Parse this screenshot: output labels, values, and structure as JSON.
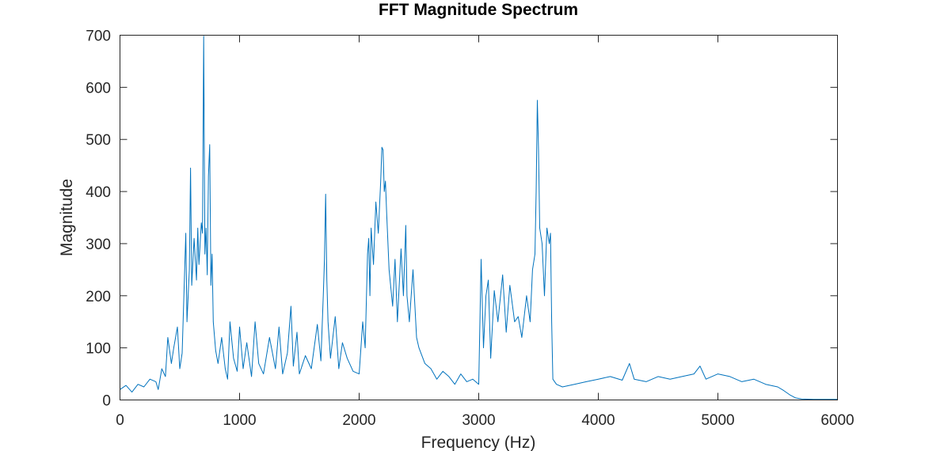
{
  "chart_data": {
    "type": "line",
    "title": "FFT Magnitude Spectrum",
    "xlabel": "Frequency (Hz)",
    "ylabel": "Magnitude",
    "xlim": [
      0,
      6000
    ],
    "ylim": [
      0,
      700
    ],
    "xticks": [
      0,
      1000,
      2000,
      3000,
      4000,
      5000,
      6000
    ],
    "yticks": [
      0,
      100,
      200,
      300,
      400,
      500,
      600,
      700
    ],
    "grid": false,
    "series_color": "#0072BD",
    "series": [
      {
        "x": [
          0,
          50,
          100,
          150,
          200,
          250,
          300,
          320,
          350,
          380,
          400,
          430,
          450,
          480,
          500,
          520,
          550,
          560,
          580,
          590,
          600,
          620,
          640,
          650,
          660,
          670,
          680,
          690,
          700,
          710,
          720,
          730,
          740,
          750,
          760,
          770,
          780,
          800,
          820,
          850,
          880,
          900,
          920,
          950,
          980,
          1000,
          1030,
          1060,
          1100,
          1130,
          1160,
          1200,
          1250,
          1300,
          1330,
          1360,
          1400,
          1430,
          1450,
          1480,
          1500,
          1550,
          1600,
          1650,
          1680,
          1700,
          1710,
          1720,
          1730,
          1740,
          1760,
          1800,
          1830,
          1860,
          1900,
          1950,
          2000,
          2030,
          2050,
          2070,
          2080,
          2090,
          2100,
          2120,
          2140,
          2160,
          2180,
          2190,
          2200,
          2210,
          2220,
          2230,
          2250,
          2280,
          2300,
          2320,
          2350,
          2370,
          2390,
          2400,
          2420,
          2450,
          2480,
          2500,
          2550,
          2600,
          2650,
          2700,
          2750,
          2800,
          2850,
          2900,
          2950,
          3000,
          3020,
          3040,
          3060,
          3080,
          3100,
          3130,
          3160,
          3200,
          3230,
          3260,
          3300,
          3330,
          3360,
          3400,
          3430,
          3450,
          3470,
          3480,
          3490,
          3500,
          3510,
          3530,
          3550,
          3570,
          3590,
          3600,
          3610,
          3620,
          3650,
          3700,
          3800,
          3900,
          4000,
          4100,
          4200,
          4260,
          4300,
          4400,
          4500,
          4600,
          4700,
          4800,
          4850,
          4900,
          5000,
          5100,
          5200,
          5300,
          5400,
          5500,
          5550,
          5600,
          5650,
          5700,
          5800,
          6000
        ],
        "y": [
          20,
          28,
          15,
          30,
          25,
          40,
          35,
          20,
          60,
          45,
          120,
          70,
          100,
          140,
          60,
          90,
          320,
          150,
          250,
          445,
          220,
          310,
          230,
          330,
          260,
          300,
          340,
          320,
          698,
          280,
          330,
          240,
          430,
          490,
          220,
          280,
          150,
          95,
          70,
          120,
          60,
          40,
          150,
          80,
          55,
          140,
          60,
          110,
          45,
          150,
          70,
          50,
          120,
          60,
          140,
          50,
          90,
          180,
          65,
          130,
          50,
          85,
          60,
          145,
          75,
          200,
          270,
          395,
          230,
          150,
          80,
          160,
          60,
          110,
          80,
          55,
          50,
          150,
          100,
          280,
          310,
          200,
          330,
          260,
          380,
          320,
          420,
          485,
          480,
          400,
          420,
          360,
          250,
          180,
          270,
          150,
          290,
          200,
          335,
          200,
          150,
          250,
          120,
          100,
          70,
          60,
          40,
          55,
          45,
          30,
          50,
          35,
          40,
          30,
          270,
          100,
          200,
          230,
          80,
          210,
          150,
          240,
          130,
          220,
          150,
          160,
          120,
          200,
          150,
          250,
          280,
          400,
          575,
          480,
          330,
          300,
          200,
          330,
          300,
          320,
          150,
          40,
          30,
          25,
          30,
          35,
          40,
          45,
          38,
          70,
          40,
          35,
          45,
          40,
          45,
          50,
          65,
          40,
          50,
          45,
          35,
          40,
          30,
          25,
          18,
          10,
          4,
          2,
          1,
          1
        ]
      }
    ]
  }
}
